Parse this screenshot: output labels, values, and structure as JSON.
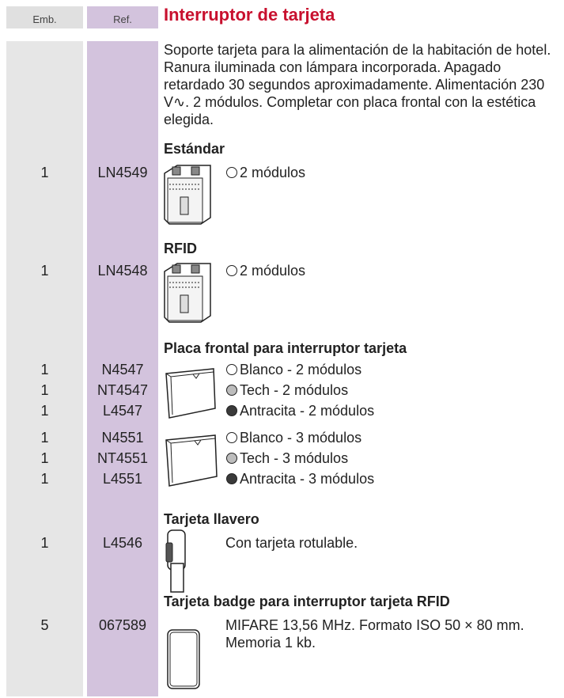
{
  "header": {
    "emb": "Emb.",
    "ref": "Ref.",
    "title": "Interruptor de tarjeta"
  },
  "description": "Soporte tarjeta para la alimentación de la habitación de hotel. Ranura iluminada con lámpara incorporada. Apagado retardado 30 segundos aproximadamente. Alimentación 230 V∿. 2 módulos. Completar con placa frontal con la estética elegida.",
  "sections": [
    {
      "heading": "Estándar",
      "items": [
        {
          "emb": "1",
          "ref": "LN4549",
          "text": "2 módulos",
          "swatch": "#ffffff"
        }
      ]
    },
    {
      "heading": "RFID",
      "items": [
        {
          "emb": "1",
          "ref": "LN4548",
          "text": "2 módulos",
          "swatch": "#ffffff"
        }
      ]
    },
    {
      "heading": "Placa frontal para interruptor tarjeta",
      "items": [
        {
          "emb": "1",
          "ref": "N4547",
          "text": "Blanco - 2 módulos",
          "swatch": "#ffffff"
        },
        {
          "emb": "1",
          "ref": "NT4547",
          "text": "Tech - 2 módulos",
          "swatch": "#bdbdbd"
        },
        {
          "emb": "1",
          "ref": "L4547",
          "text": "Antracita - 2 módulos",
          "swatch": "#3a3a3a"
        },
        {
          "emb": "1",
          "ref": "N4551",
          "text": "Blanco - 3 módulos",
          "swatch": "#ffffff"
        },
        {
          "emb": "1",
          "ref": "NT4551",
          "text": "Tech - 3 módulos",
          "swatch": "#bdbdbd"
        },
        {
          "emb": "1",
          "ref": "L4551",
          "text": "Antracita - 3 módulos",
          "swatch": "#3a3a3a"
        }
      ]
    },
    {
      "heading": "Tarjeta llavero",
      "items": [
        {
          "emb": "1",
          "ref": "L4546",
          "text": "Con tarjeta rotulable."
        }
      ]
    },
    {
      "heading": "Tarjeta badge para interruptor tarjeta RFID",
      "items": [
        {
          "emb": "5",
          "ref": "067589",
          "text": "MIFARE 13,56 MHz. Formato ISO 50 × 80 mm. Memoria 1 kb."
        }
      ]
    }
  ]
}
